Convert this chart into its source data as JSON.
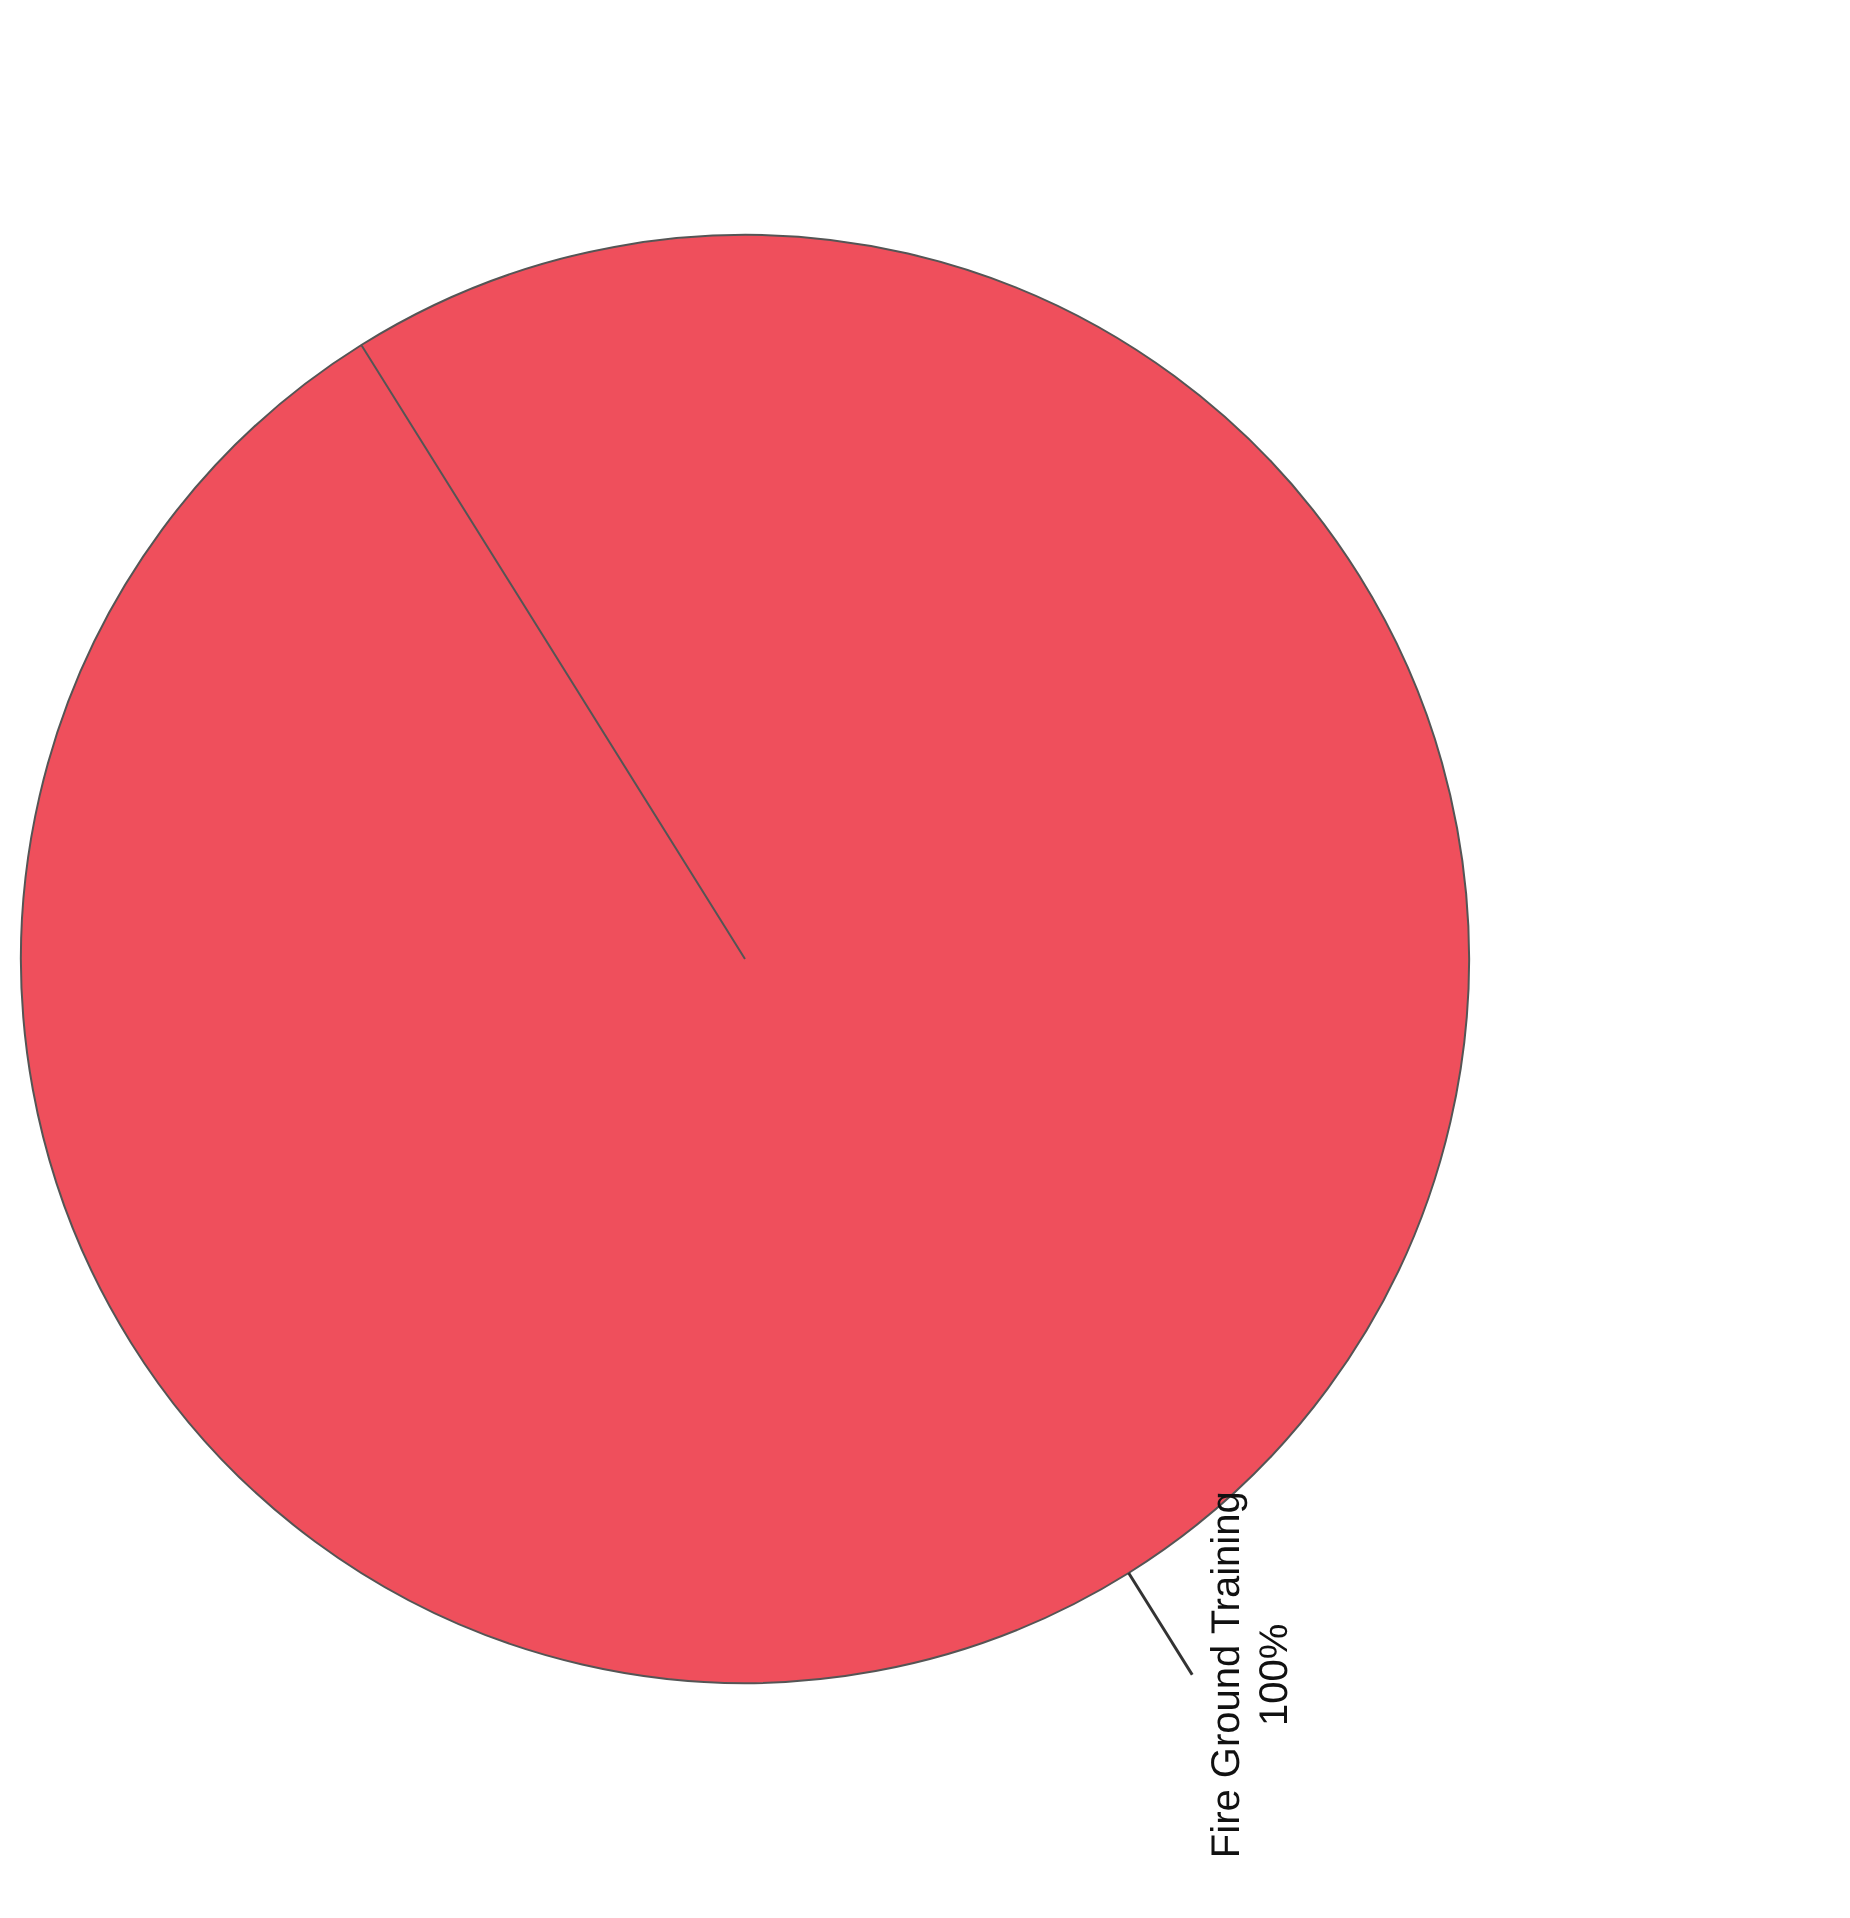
{
  "chart_data": {
    "type": "pie",
    "categories": [
      "Fire Ground Training"
    ],
    "values": [
      100
    ],
    "colors": [
      "#ef4f5c"
    ],
    "value_labels": [
      "100%"
    ],
    "legend": false
  }
}
